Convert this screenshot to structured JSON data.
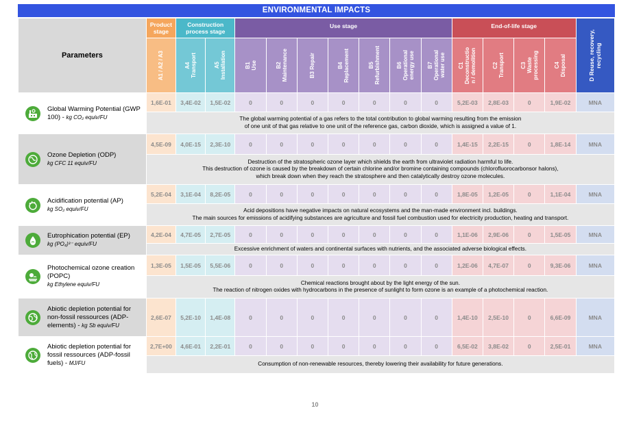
{
  "title": "ENVIRONMENTAL IMPACTS",
  "header": {
    "parameters": "Parameters",
    "groups": {
      "product": "Product stage",
      "construction": "Construction process stage",
      "use": "Use stage",
      "eol": "End-of-life stage",
      "d": "D Reuse, recovery,\nrecycling"
    },
    "modules": [
      "A1 / A2 / A3",
      "A4\nTransport",
      "A5\nInstallation",
      "B1\nUse",
      "B2\nMaintenance",
      "B3 Repair",
      "B4\nReplacement",
      "B5\nRefurbishment",
      "B6\nOperational\nenergy use",
      "B7\nOperational\nwater use",
      "C1\nDeconstructio\nn / demolition",
      "C2\nTransport",
      "C3\nWaste\nprocessing",
      "C4\nDisposal"
    ]
  },
  "rows": [
    {
      "name": "Global Warming Potential (GWP 100) - ",
      "unit": "kg CO₂ equiv/FU",
      "icon": "gwp-factory-icon",
      "values": [
        "1,6E-01",
        "3,4E-02",
        "1,5E-02",
        "0",
        "0",
        "0",
        "0",
        "0",
        "0",
        "0",
        "5,2E-03",
        "2,8E-03",
        "0",
        "1,9E-02",
        "MNA"
      ],
      "desc": "The global warming potential of a gas refers to the total contribution to global warming resulting from the emission\nof one unit of that gas relative to one unit of the reference gas, carbon dioxide, which is assigned a value of 1."
    },
    {
      "name": "Ozone Depletion (ODP)",
      "unit": "kg CFC 11 equiv/FU",
      "icon": "ozone-globe-icon",
      "values": [
        "4,5E-09",
        "4,0E-15",
        "2,3E-10",
        "0",
        "0",
        "0",
        "0",
        "0",
        "0",
        "0",
        "1,4E-15",
        "2,2E-15",
        "0",
        "1,8E-14",
        "MNA"
      ],
      "desc": "Destruction of the stratospheric ozone layer which shields the earth from ultraviolet radiation harmful to life.\nThis destruction of ozone is caused by the breakdown of certain chlorine and/or bromine containing compounds (chlorofluorocarbonsor halons),\nwhich break down when they reach the stratosphere and then catalytically destroy ozone molecules."
    },
    {
      "name": "Acidification potential (AP)",
      "unit": "kg SO₂ equiv/FU",
      "icon": "acid-rain-icon",
      "values": [
        "5,2E-04",
        "3,1E-04",
        "8,2E-05",
        "0",
        "0",
        "0",
        "0",
        "0",
        "0",
        "0",
        "1,8E-05",
        "1,2E-05",
        "0",
        "1,1E-04",
        "MNA"
      ],
      "desc": "Acid depositions have negative impacts on natural ecosystems and the man-made environment incl. buildings.\nThe main sources for emissions of acidifying substances are agriculture and fossil fuel combustion used for electricity production, heating and transport."
    },
    {
      "name": "Eutrophication potential (EP)",
      "unit": "kg (PO₄)³⁻ equiv/FU",
      "icon": "water-drop-icon",
      "values": [
        "4,2E-04",
        "4,7E-05",
        "2,7E-05",
        "0",
        "0",
        "0",
        "0",
        "0",
        "0",
        "0",
        "1,1E-06",
        "2,9E-06",
        "0",
        "1,5E-05",
        "MNA"
      ],
      "desc": "Excessive enrichment of waters and continental surfaces with nutrients, and the associated adverse biological effects."
    },
    {
      "name": "Photochemical ozone creation (POPC)",
      "unit": "kg Ethylene equiv/FU",
      "icon": "sun-smog-icon",
      "values": [
        "1,3E-05",
        "1,5E-05",
        "5,5E-06",
        "0",
        "0",
        "0",
        "0",
        "0",
        "0",
        "0",
        "1,2E-06",
        "4,7E-07",
        "0",
        "9,3E-06",
        "MNA"
      ],
      "desc": "Chemical reactions brought about by the light energy of the sun.\nThe reaction of nitrogen oxides with hydrocarbons in the presence of sunlight to form ozone is an example of a photochemical reaction."
    },
    {
      "name": "Abiotic depletion potential for non-fossil ressources (ADP-elements) - ",
      "unit": "kg Sb equiv/FU",
      "icon": "earth-resources-icon",
      "values": [
        "2,6E-07",
        "5,2E-10",
        "1,4E-08",
        "0",
        "0",
        "0",
        "0",
        "0",
        "0",
        "0",
        "1,4E-10",
        "2,5E-10",
        "0",
        "6,6E-09",
        "MNA"
      ],
      "desc": ""
    },
    {
      "name": "Abiotic depletion potential for fossil ressources (ADP-fossil fuels) - ",
      "unit": "MJ/FU",
      "icon": "earth-fossil-icon",
      "values": [
        "2,7E+00",
        "4,6E-01",
        "2,2E-01",
        "0",
        "0",
        "0",
        "0",
        "0",
        "0",
        "0",
        "6,5E-02",
        "3,8E-02",
        "0",
        "2,5E-01",
        "MNA"
      ],
      "desc": "Consumption of non-renewable resources, thereby lowering their availability for future generations."
    }
  ],
  "page_number": "10"
}
